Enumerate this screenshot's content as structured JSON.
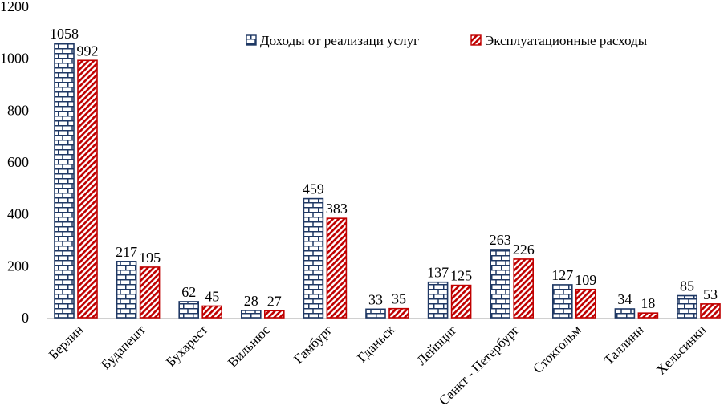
{
  "chart_data": {
    "type": "bar",
    "title": "",
    "xlabel": "",
    "ylabel": "",
    "ylim": [
      0,
      1200
    ],
    "yticks": [
      0,
      200,
      400,
      600,
      800,
      1000,
      1200
    ],
    "grid": false,
    "legend_position": "top-right",
    "categories": [
      "Берлин",
      "Будапешт",
      "Бухарест",
      "Вильнюс",
      "Гамбург",
      "Гданьск",
      "Лейпциг",
      "Санкт - Петербург",
      "Стокгольм",
      "Таллинн",
      "Хельсинки"
    ],
    "series": [
      {
        "name": "Доходы от реализаци услуг",
        "color": "#1f3864",
        "pattern": "brick",
        "values": [
          1058,
          217,
          62,
          28,
          459,
          33,
          137,
          263,
          127,
          34,
          85
        ]
      },
      {
        "name": "Эксплуатационные расходы",
        "color": "#c00000",
        "pattern": "diagonal",
        "values": [
          992,
          195,
          45,
          27,
          383,
          35,
          125,
          226,
          109,
          18,
          53
        ]
      }
    ]
  }
}
